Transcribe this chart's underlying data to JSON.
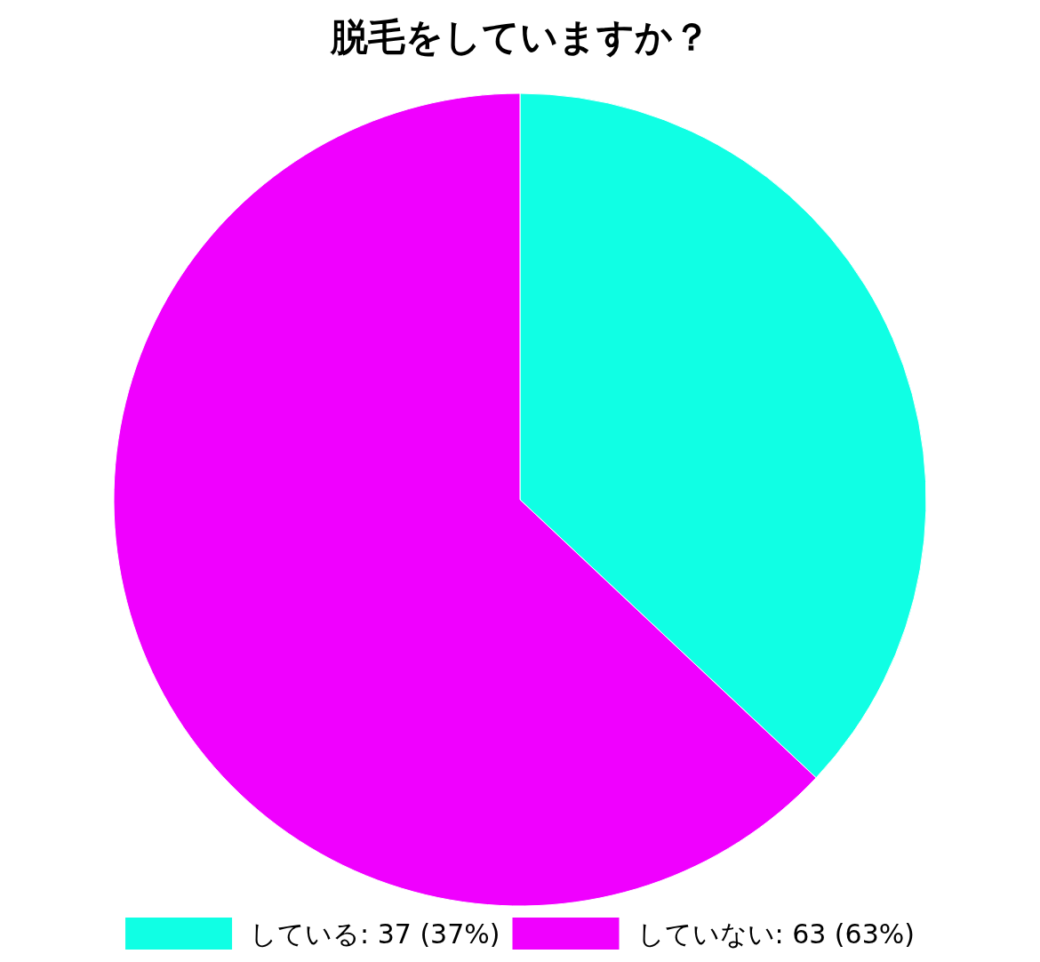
{
  "chart_data": {
    "type": "pie",
    "title": "脱毛をしていますか？",
    "categories": [
      "している: 37 (37%)",
      "していない: 63 (63%)"
    ],
    "values": [
      37,
      63
    ],
    "colors": [
      "#10ffe4",
      "#f000ff"
    ],
    "legend": "bottom"
  }
}
